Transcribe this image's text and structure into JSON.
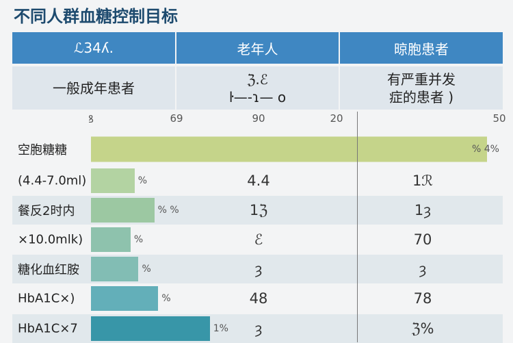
{
  "title": "不同人群血糖控制目标",
  "header": [
    "ℒ34ʎ.",
    "老年人",
    "晾胞患者"
  ],
  "subheader": [
    [
      "一般成年患者"
    ],
    [
      "ℨ.ℰ",
      "ŀ—-ɿ— o"
    ],
    [
      "有严重并发",
      "症的患者 )"
    ]
  ],
  "chart_data": {
    "type": "bar",
    "x_ticks": [
      "ꝸ",
      "69",
      "90",
      "20",
      "50"
    ],
    "categories": [
      "空胞糖糖",
      "(4.4-7.0ml)",
      "餐反2时内",
      "×10.0mlk)",
      "糖化血红胺",
      "HbA1C×)",
      "HbA1C×7"
    ],
    "values": [
      100,
      11,
      16,
      10,
      12,
      17,
      30
    ],
    "bar_colors": [
      "#c5d48a",
      "#b3d3a2",
      "#9cc8a2",
      "#8ec2ad",
      "#82bdb4",
      "#63afb9",
      "#3896a8"
    ],
    "bar_pct_labels": [
      "% 4%",
      "%",
      "% %",
      "%",
      "%",
      "%",
      "1%"
    ],
    "col_elderly": [
      "",
      "4.4",
      "1ℨ",
      "ℰ",
      "ȝ",
      "48",
      "ȝ"
    ],
    "col_severe": [
      "",
      "1ℛ",
      "1ȝ",
      "70",
      "ȝ",
      "78",
      "ℨ%"
    ],
    "banded_rows": true
  }
}
